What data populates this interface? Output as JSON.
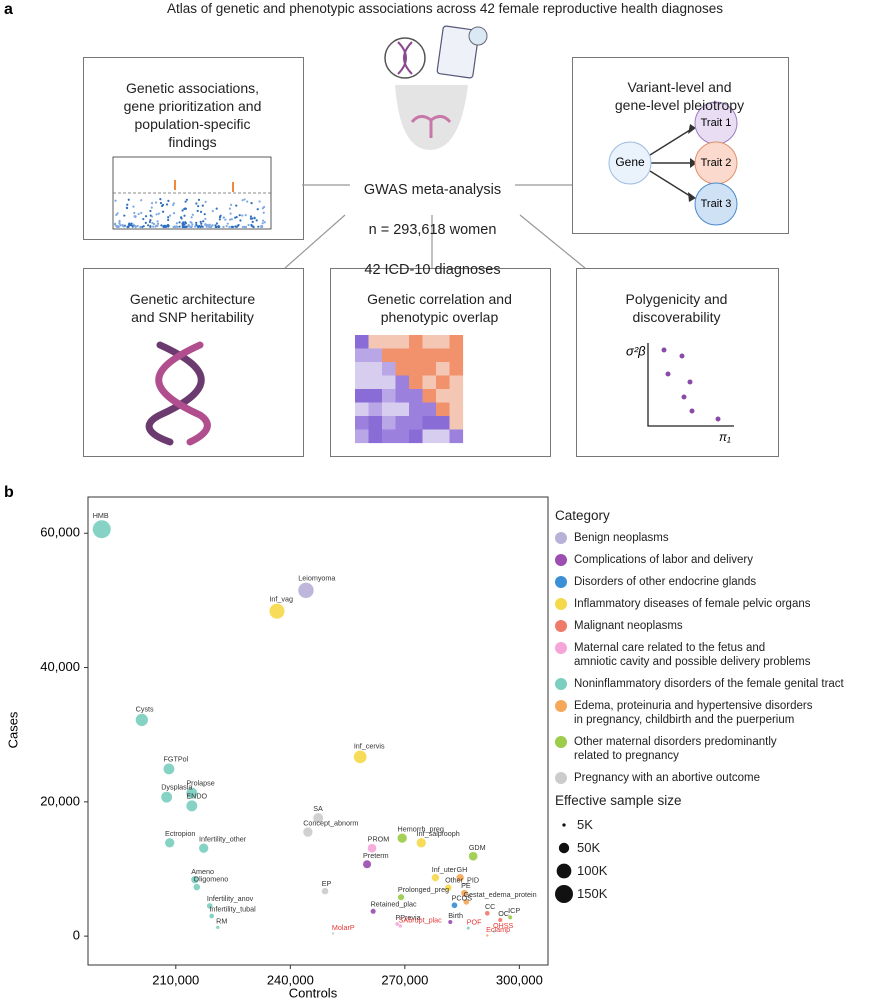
{
  "panel_a": {
    "label": "a",
    "title": "Atlas of genetic and phenotypic associations across 42 female reproductive health diagnoses",
    "center": [
      "GWAS meta-analysis",
      "n = 293,618 women",
      "42 ICD-10 diagnoses"
    ],
    "boxes": [
      "Genetic associations,\ngene prioritization and\npopulation-specific\nfindings",
      "Variant-level and\ngene-level pleiotropy",
      "Genetic architecture\nand SNP heritability",
      "Genetic correlation and\nphenotypic overlap",
      "Polygenicity and\ndiscoverability"
    ],
    "pleiotropy": {
      "gene": "Gene",
      "traits": [
        "Trait 1",
        "Trait 2",
        "Trait 3"
      ]
    },
    "polygenicity_axes": {
      "y": "σ²β",
      "x": "π₁"
    }
  },
  "chart_data": {
    "type": "scatter",
    "label": "b",
    "x_label": "Controls",
    "y_label": "Cases",
    "legend_title": "Category",
    "xlim": [
      187000,
      307500
    ],
    "ylim": [
      -4300,
      65400
    ],
    "xticks": [
      {
        "value": 210000,
        "label": "210,000"
      },
      {
        "value": 240000,
        "label": "240,000"
      },
      {
        "value": 270000,
        "label": "270,000"
      },
      {
        "value": 300000,
        "label": "300,000"
      }
    ],
    "yticks": [
      0,
      {
        "value": 20000,
        "label": "20,000"
      },
      {
        "value": 40000,
        "label": "40,000"
      },
      {
        "value": 60000,
        "label": "60,000"
      }
    ],
    "size_legend": {
      "title": "Effective sample size",
      "values": [
        {
          "value": 5000,
          "label": "5K"
        },
        {
          "value": 50000,
          "label": "50K"
        },
        {
          "value": 100000,
          "label": "100K"
        },
        {
          "value": 150000,
          "label": "150K"
        }
      ]
    },
    "series": [
      {
        "name": "Benign neoplasms",
        "color": "#b9b1d8",
        "labels": [
          "Leiomyoma"
        ],
        "x": [
          244100
        ],
        "values": [
          51500
        ],
        "sizes": [
          110000
        ]
      },
      {
        "name": "Complications of labor and delivery",
        "color": "#9c4fb1",
        "labels": [
          "Preterm",
          "Retained_plac",
          "Birth"
        ],
        "x": [
          260100,
          261700,
          281900
        ],
        "values": [
          10700,
          3700,
          2100
        ],
        "sizes": [
          30000,
          12000,
          8000
        ]
      },
      {
        "name": "Disorders of other endocrine glands",
        "color": "#3b8fd6",
        "labels": [
          "PCOS"
        ],
        "x": [
          283000
        ],
        "values": [
          4600
        ],
        "sizes": [
          15000
        ]
      },
      {
        "name": "Inflammatory diseases of female pelvic organs",
        "color": "#f6d94b",
        "labels": [
          "Inf_vag",
          "Inf_cervis",
          "Inf_salp/ooph",
          "Inf_uter",
          "Other_PID"
        ],
        "x": [
          236500,
          258300,
          274300,
          278000,
          281400
        ],
        "values": [
          48400,
          26700,
          13900,
          8700,
          7200
        ],
        "sizes": [
          105000,
          75000,
          40000,
          25000,
          20000
        ]
      },
      {
        "name": "Malignant neoplasms",
        "color": "#f07a6a",
        "labels": [
          "CC",
          "OC"
        ],
        "x": [
          291600,
          295000
        ],
        "values": [
          3400,
          2400
        ],
        "sizes": [
          10000,
          8000
        ]
      },
      {
        "name": "Maternal care related to the fetus and\namniotic cavity and possible delivery problems",
        "color": "#f4a6d8",
        "labels": [
          "PROM",
          "PPrevia",
          "SAbrupt_plac"
        ],
        "x": [
          261400,
          268000,
          268800
        ],
        "values": [
          13100,
          1800,
          1500
        ],
        "sizes": [
          35000,
          6000,
          5000
        ],
        "label_colors": [
          "#333333",
          "#333333",
          "#e53935"
        ]
      },
      {
        "name": "Noninflammatory disorders of the female genital tract",
        "color": "#7ccfc0",
        "labels": [
          "HMB",
          "Cysts",
          "FGTPol",
          "Dysplasia",
          "Prolapse",
          "ENDO",
          "Ectropion",
          "Infertility_other",
          "Ameno",
          "Oligomeno",
          "Infertility_anov",
          "Infertility_tubal",
          "RM",
          "POF",
          "OHSS"
        ],
        "x": [
          190600,
          201100,
          208200,
          207600,
          214200,
          214200,
          208400,
          217300,
          215000,
          215500,
          218900,
          219400,
          221000,
          286600,
          293400
        ],
        "values": [
          60600,
          32200,
          24900,
          20700,
          21300,
          19400,
          13900,
          13100,
          8400,
          7300,
          4500,
          3000,
          1300,
          1200,
          700
        ],
        "sizes": [
          150000,
          70000,
          55000,
          55000,
          55000,
          55000,
          40000,
          40000,
          25000,
          20000,
          15000,
          10000,
          5000,
          4000,
          2000
        ],
        "label_colors": [
          "#333333",
          "#333333",
          "#333333",
          "#333333",
          "#333333",
          "#333333",
          "#333333",
          "#333333",
          "#333333",
          "#333333",
          "#333333",
          "#333333",
          "#333333",
          "#e53935",
          "#e53935"
        ]
      },
      {
        "name": "Edema, proteinuria and hypertensive disorders\nin pregnancy, childbirth and the puerperium",
        "color": "#f5a85a",
        "labels": [
          "GH",
          "PE",
          "Gestat_edema_protein",
          "Eclamp"
        ],
        "x": [
          284500,
          285600,
          286100,
          291600
        ],
        "values": [
          8700,
          6400,
          5100,
          100
        ],
        "sizes": [
          25000,
          20000,
          15000,
          1000
        ],
        "label_colors": [
          "#333333",
          "#333333",
          "#333333",
          "#e53935"
        ]
      },
      {
        "name": "Other maternal disorders predominantly\nrelated to pregnancy",
        "color": "#9ccc4a",
        "labels": [
          "Hemorrh_preg",
          "GDM",
          "Prolonged_preg",
          "ICP"
        ],
        "x": [
          269300,
          287900,
          269000,
          297600
        ],
        "values": [
          14600,
          11900,
          5800,
          2800
        ],
        "sizes": [
          40000,
          35000,
          18000,
          8000
        ]
      },
      {
        "name": "Pregnancy with an abortive outcome",
        "color": "#cccccc",
        "labels": [
          "SA",
          "Concept_abnorm",
          "EP",
          "MolarP"
        ],
        "x": [
          247300,
          244600,
          249100,
          251200
        ],
        "values": [
          17600,
          15500,
          6700,
          400
        ],
        "sizes": [
          45000,
          40000,
          20000,
          1500
        ],
        "label_colors": [
          "#333333",
          "#333333",
          "#333333",
          "#e53935"
        ]
      }
    ]
  }
}
